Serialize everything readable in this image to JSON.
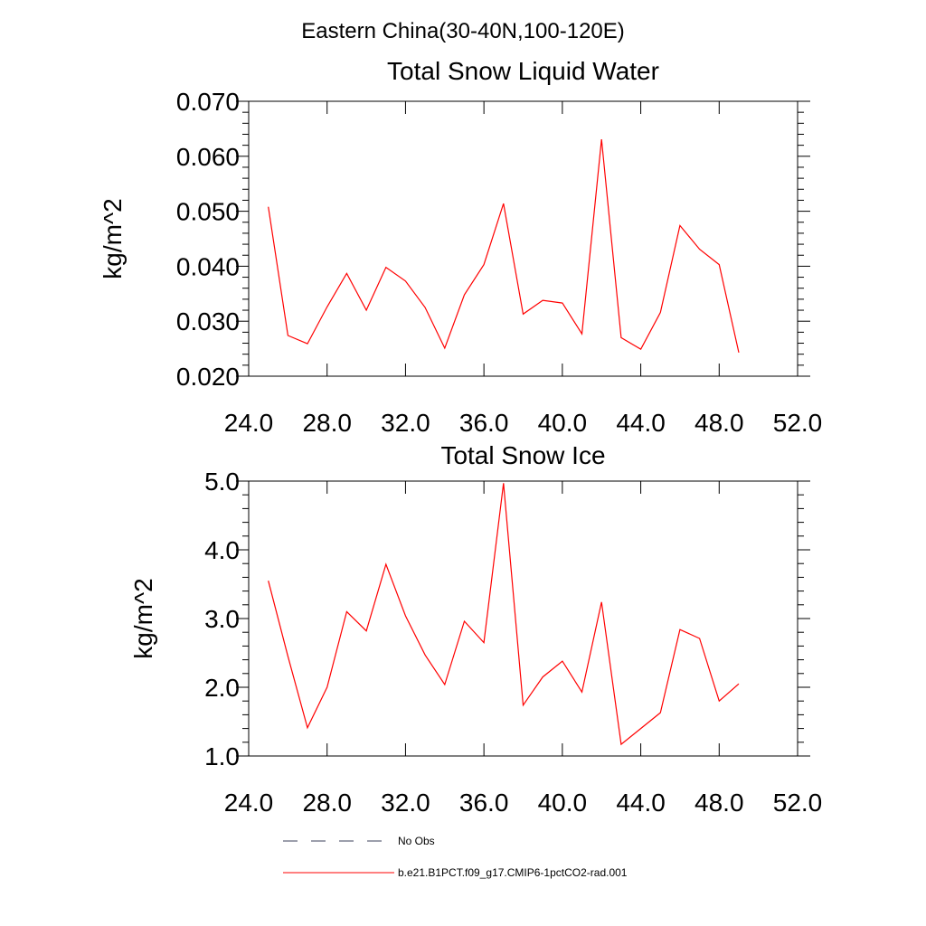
{
  "suptitle": "Eastern China(30-40N,100-120E)",
  "legend": [
    {
      "label": "No Obs",
      "color": "#000000",
      "style": "dashed"
    },
    {
      "label": "b.e21.B1PCT.f09_g17.CMIP6-1pctCO2-rad.001",
      "color": "#ff0000",
      "style": "solid"
    }
  ],
  "chart_data": [
    {
      "type": "line",
      "title": "Total Snow Liquid Water",
      "xlabel": "",
      "ylabel": "kg/m^2",
      "xlim": [
        24,
        52
      ],
      "ylim": [
        0.02,
        0.07
      ],
      "xticks": [
        "24.0",
        "28.0",
        "32.0",
        "36.0",
        "40.0",
        "44.0",
        "48.0",
        "52.0"
      ],
      "yticks": [
        "0.020",
        "0.030",
        "0.040",
        "0.050",
        "0.060",
        "0.070"
      ],
      "series": [
        {
          "name": "b.e21.B1PCT.f09_g17.CMIP6-1pctCO2-rad.001",
          "color": "#ff0000",
          "x": [
            25,
            26,
            27,
            28,
            29,
            30,
            31,
            32,
            33,
            34,
            35,
            36,
            37,
            38,
            39,
            40,
            41,
            42,
            43,
            44,
            45,
            46,
            47,
            48,
            49
          ],
          "y": [
            0.0508,
            0.0274,
            0.0259,
            0.0326,
            0.0387,
            0.032,
            0.0398,
            0.0373,
            0.0325,
            0.0251,
            0.0348,
            0.0403,
            0.0514,
            0.0313,
            0.0338,
            0.0333,
            0.0277,
            0.0631,
            0.027,
            0.0249,
            0.0316,
            0.0474,
            0.0431,
            0.0403,
            0.0243
          ]
        }
      ]
    },
    {
      "type": "line",
      "title": "Total Snow Ice",
      "xlabel": "",
      "ylabel": "kg/m^2",
      "xlim": [
        24,
        52
      ],
      "ylim": [
        1.0,
        5.0
      ],
      "xticks": [
        "24.0",
        "28.0",
        "32.0",
        "36.0",
        "40.0",
        "44.0",
        "48.0",
        "52.0"
      ],
      "yticks": [
        "1.0",
        "2.0",
        "3.0",
        "4.0",
        "5.0"
      ],
      "series": [
        {
          "name": "b.e21.B1PCT.f09_g17.CMIP6-1pctCO2-rad.001",
          "color": "#ff0000",
          "x": [
            25,
            26,
            27,
            28,
            29,
            30,
            31,
            32,
            33,
            34,
            35,
            36,
            37,
            38,
            39,
            40,
            41,
            42,
            43,
            44,
            45,
            46,
            47,
            48,
            49
          ],
          "y": [
            3.55,
            2.45,
            1.41,
            2.0,
            3.1,
            2.82,
            3.79,
            3.04,
            2.47,
            2.04,
            2.96,
            2.65,
            4.97,
            1.74,
            2.15,
            2.38,
            1.93,
            3.24,
            1.17,
            1.4,
            1.63,
            2.84,
            2.71,
            1.8,
            2.05
          ]
        }
      ]
    }
  ]
}
